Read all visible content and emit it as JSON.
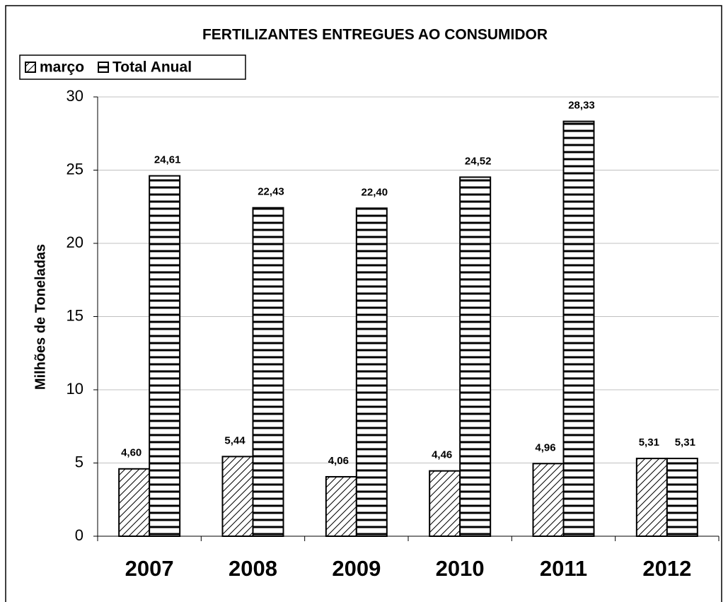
{
  "chart_data": {
    "type": "bar",
    "title": "FERTILIZANTES ENTREGUES AO CONSUMIDOR",
    "y_label": "Milhões de Toneladas",
    "categories": [
      "2007",
      "2008",
      "2009",
      "2010",
      "2011",
      "2012"
    ],
    "series": [
      {
        "name": "março",
        "color": "#000000",
        "pattern": "diagonal",
        "values": [
          4.6,
          5.44,
          4.06,
          4.46,
          4.96,
          5.31
        ],
        "value_labels": [
          "4,60",
          "5,44",
          "4,06",
          "4,46",
          "4,96",
          "5,31"
        ]
      },
      {
        "name": "Total Anual",
        "color": "#000000",
        "pattern": "horizontal",
        "values": [
          24.61,
          22.43,
          22.4,
          24.52,
          28.33,
          5.31
        ],
        "value_labels": [
          "24,61",
          "22,43",
          "22,40",
          "24,52",
          "28,33",
          "5,31"
        ]
      }
    ],
    "ylim": [
      0,
      30
    ],
    "yticks": [
      0,
      5,
      10,
      15,
      20,
      25,
      30
    ],
    "grid": true,
    "legend": "top-left"
  }
}
